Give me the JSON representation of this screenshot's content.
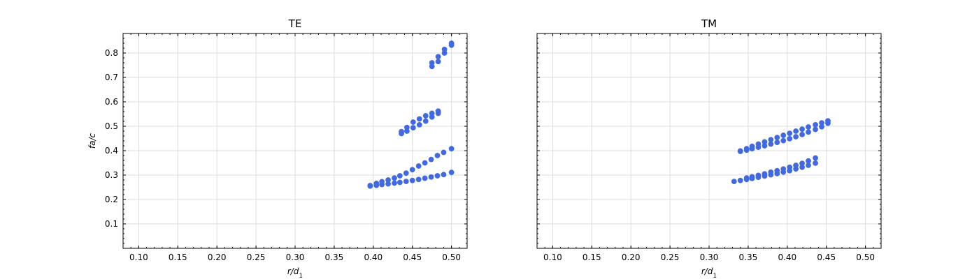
{
  "chart_data": [
    {
      "type": "scatter",
      "title": "TE",
      "xlabel": "r/d",
      "xlabel_sub": "1",
      "ylabel": "fa/c",
      "xlim": [
        0.08,
        0.52
      ],
      "ylim": [
        0.0,
        0.88
      ],
      "xticks": [
        0.1,
        0.15,
        0.2,
        0.25,
        0.3,
        0.35,
        0.4,
        0.45,
        0.5
      ],
      "xtick_labels": [
        "0.10",
        "0.15",
        "0.20",
        "0.25",
        "0.30",
        "0.35",
        "0.40",
        "0.45",
        "0.50"
      ],
      "yticks": [
        0.1,
        0.2,
        0.3,
        0.4,
        0.5,
        0.6,
        0.7,
        0.8
      ],
      "ytick_labels": [
        "0.1",
        "0.2",
        "0.3",
        "0.4",
        "0.5",
        "0.6",
        "0.7",
        "0.8"
      ],
      "show_yticklabels": true,
      "grid": true,
      "marker_color": "#4169e1",
      "series": [
        {
          "points": [
            [
              0.396,
              0.255
            ],
            [
              0.404,
              0.258
            ],
            [
              0.411,
              0.261
            ],
            [
              0.419,
              0.264
            ],
            [
              0.427,
              0.267
            ],
            [
              0.434,
              0.27
            ],
            [
              0.442,
              0.274
            ],
            [
              0.45,
              0.278
            ],
            [
              0.458,
              0.282
            ],
            [
              0.466,
              0.287
            ],
            [
              0.474,
              0.292
            ],
            [
              0.482,
              0.297
            ],
            [
              0.49,
              0.302
            ],
            [
              0.5,
              0.311
            ]
          ]
        },
        {
          "points": [
            [
              0.396,
              0.257
            ],
            [
              0.404,
              0.266
            ],
            [
              0.411,
              0.273
            ],
            [
              0.419,
              0.28
            ],
            [
              0.427,
              0.288
            ],
            [
              0.434,
              0.297
            ],
            [
              0.442,
              0.308
            ],
            [
              0.45,
              0.322
            ],
            [
              0.458,
              0.337
            ],
            [
              0.466,
              0.35
            ],
            [
              0.474,
              0.364
            ],
            [
              0.482,
              0.38
            ],
            [
              0.49,
              0.393
            ],
            [
              0.5,
              0.408
            ]
          ]
        },
        {
          "points": [
            [
              0.436,
              0.47
            ],
            [
              0.436,
              0.478
            ],
            [
              0.443,
              0.48
            ],
            [
              0.443,
              0.495
            ],
            [
              0.451,
              0.494
            ],
            [
              0.451,
              0.517
            ],
            [
              0.459,
              0.506
            ],
            [
              0.459,
              0.53
            ],
            [
              0.467,
              0.521
            ],
            [
              0.467,
              0.543
            ],
            [
              0.475,
              0.538
            ],
            [
              0.475,
              0.553
            ],
            [
              0.483,
              0.553
            ],
            [
              0.483,
              0.562
            ]
          ]
        },
        {
          "points": [
            [
              0.475,
              0.745
            ],
            [
              0.475,
              0.76
            ],
            [
              0.483,
              0.765
            ],
            [
              0.483,
              0.785
            ],
            [
              0.491,
              0.8
            ],
            [
              0.491,
              0.815
            ],
            [
              0.5,
              0.832
            ],
            [
              0.5,
              0.84
            ]
          ]
        }
      ]
    },
    {
      "type": "scatter",
      "title": "TM",
      "xlabel": "r/d",
      "xlabel_sub": "1",
      "ylabel": "",
      "xlim": [
        0.08,
        0.52
      ],
      "ylim": [
        0.0,
        0.88
      ],
      "xticks": [
        0.1,
        0.15,
        0.2,
        0.25,
        0.3,
        0.35,
        0.4,
        0.45,
        0.5
      ],
      "xtick_labels": [
        "0.10",
        "0.15",
        "0.20",
        "0.25",
        "0.30",
        "0.35",
        "0.40",
        "0.45",
        "0.50"
      ],
      "yticks": [
        0.1,
        0.2,
        0.3,
        0.4,
        0.5,
        0.6,
        0.7,
        0.8
      ],
      "ytick_labels": [],
      "show_yticklabels": false,
      "grid": true,
      "marker_color": "#4169e1",
      "series": [
        {
          "points": [
            [
              0.332,
              0.274
            ],
            [
              0.34,
              0.278
            ],
            [
              0.348,
              0.282
            ],
            [
              0.355,
              0.286
            ],
            [
              0.363,
              0.291
            ],
            [
              0.371,
              0.296
            ],
            [
              0.379,
              0.301
            ],
            [
              0.387,
              0.306
            ],
            [
              0.395,
              0.312
            ],
            [
              0.403,
              0.318
            ],
            [
              0.411,
              0.325
            ],
            [
              0.419,
              0.332
            ],
            [
              0.427,
              0.34
            ],
            [
              0.436,
              0.349
            ]
          ]
        },
        {
          "points": [
            [
              0.348,
              0.288
            ],
            [
              0.355,
              0.293
            ],
            [
              0.363,
              0.299
            ],
            [
              0.371,
              0.305
            ],
            [
              0.379,
              0.312
            ],
            [
              0.387,
              0.318
            ],
            [
              0.395,
              0.325
            ],
            [
              0.403,
              0.332
            ],
            [
              0.411,
              0.34
            ],
            [
              0.419,
              0.348
            ],
            [
              0.427,
              0.358
            ],
            [
              0.436,
              0.37
            ]
          ]
        },
        {
          "points": [
            [
              0.34,
              0.397
            ],
            [
              0.348,
              0.402
            ],
            [
              0.355,
              0.408
            ],
            [
              0.363,
              0.414
            ],
            [
              0.371,
              0.42
            ],
            [
              0.379,
              0.427
            ],
            [
              0.387,
              0.434
            ],
            [
              0.395,
              0.441
            ],
            [
              0.403,
              0.449
            ],
            [
              0.411,
              0.457
            ],
            [
              0.419,
              0.466
            ],
            [
              0.427,
              0.476
            ],
            [
              0.436,
              0.487
            ],
            [
              0.444,
              0.498
            ],
            [
              0.452,
              0.512
            ]
          ]
        },
        {
          "points": [
            [
              0.34,
              0.399
            ],
            [
              0.348,
              0.408
            ],
            [
              0.355,
              0.418
            ],
            [
              0.363,
              0.427
            ],
            [
              0.371,
              0.436
            ],
            [
              0.379,
              0.445
            ],
            [
              0.387,
              0.454
            ],
            [
              0.395,
              0.463
            ],
            [
              0.403,
              0.471
            ],
            [
              0.411,
              0.48
            ],
            [
              0.419,
              0.488
            ],
            [
              0.427,
              0.497
            ],
            [
              0.436,
              0.506
            ],
            [
              0.444,
              0.514
            ],
            [
              0.452,
              0.522
            ]
          ]
        }
      ]
    }
  ]
}
